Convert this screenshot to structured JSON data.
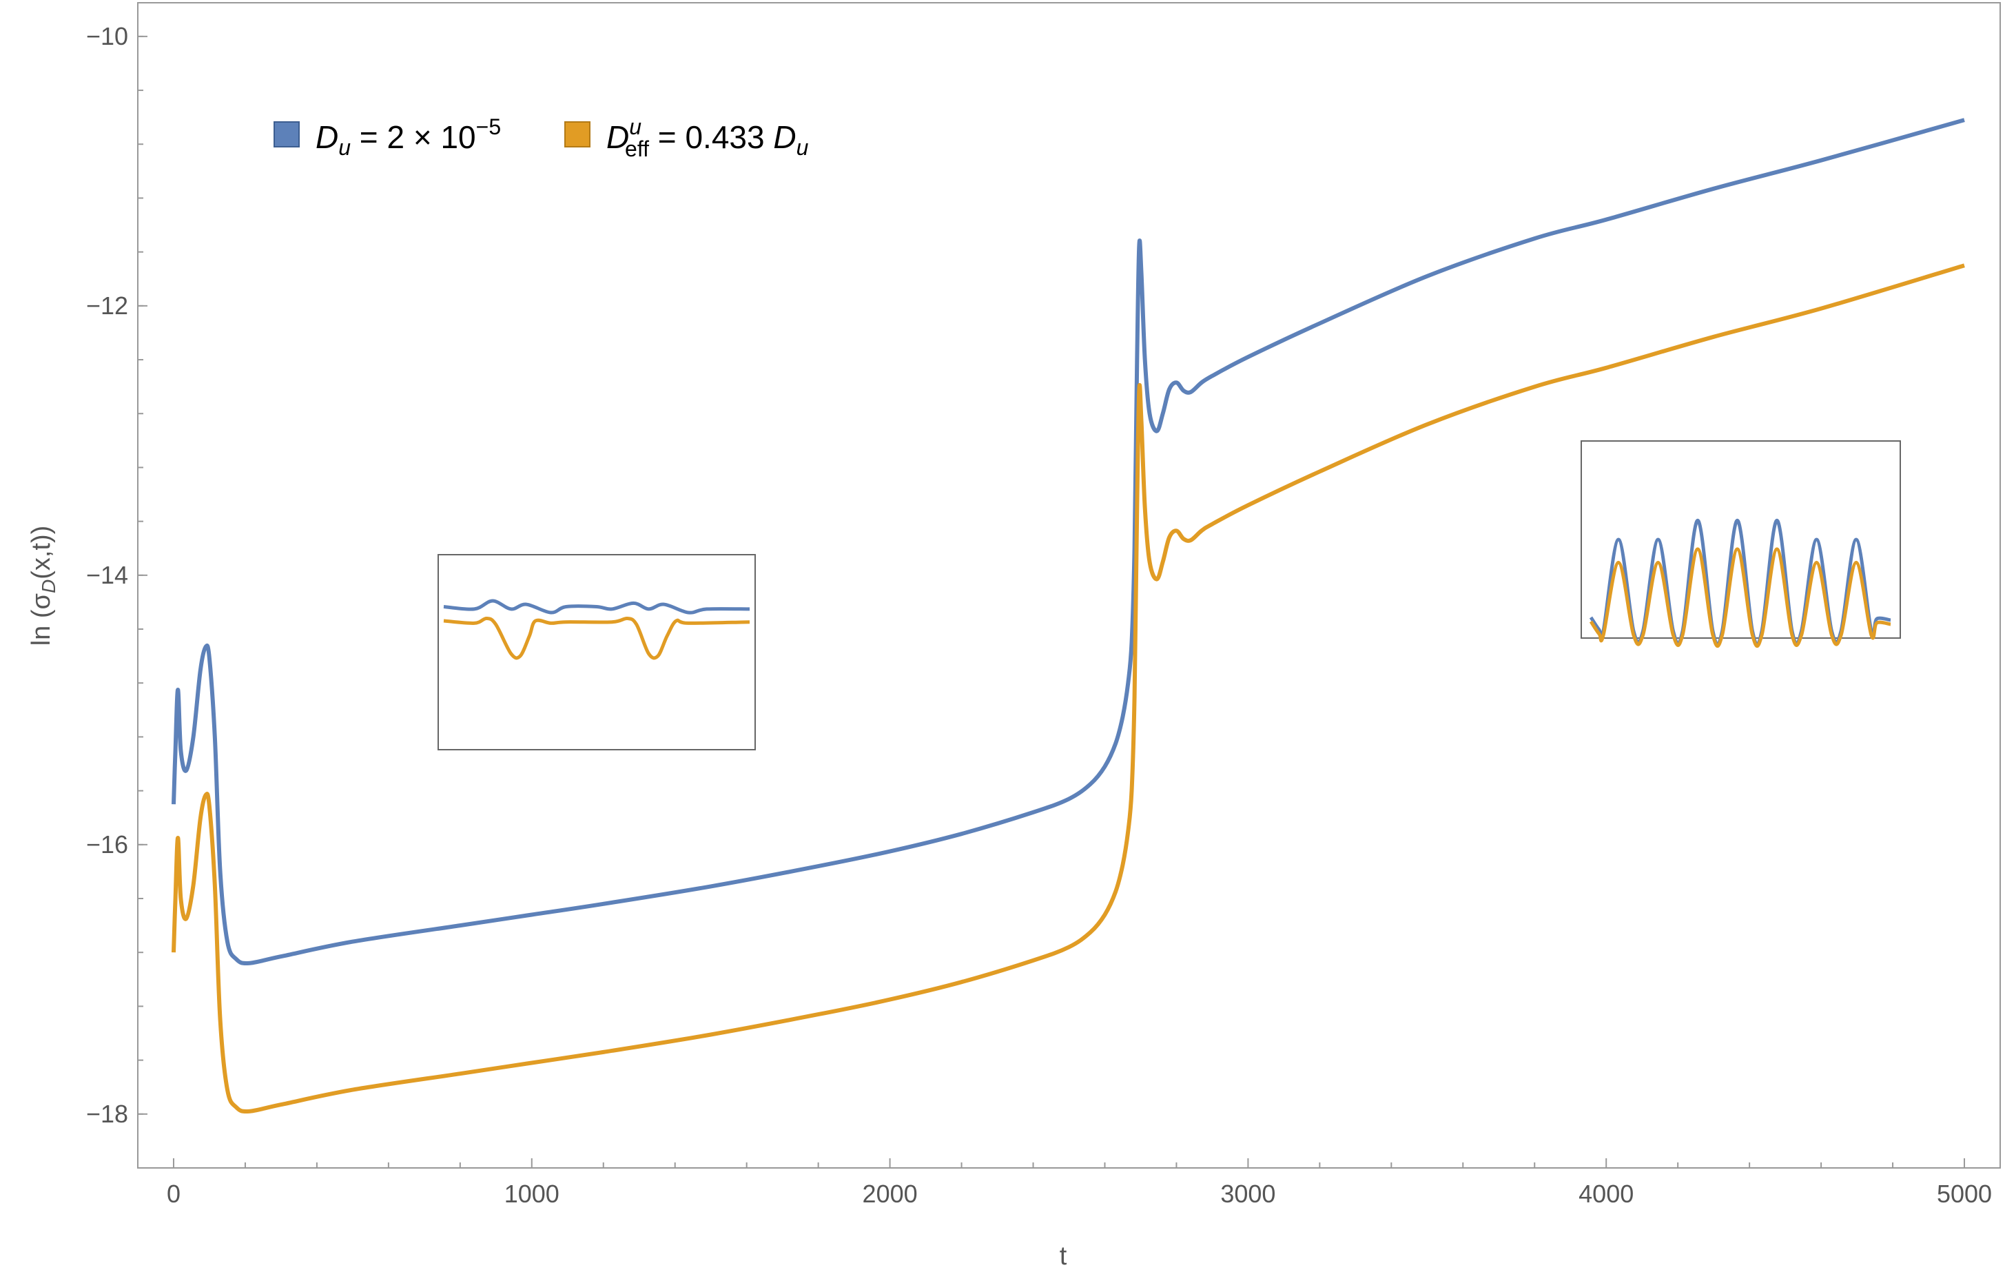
{
  "chart_data": {
    "type": "line",
    "xlabel": "t",
    "ylabel": "ln (σ_D(x,t))",
    "ylabel_parts": {
      "pre": "ln (σ",
      "sub": "D",
      "post": "(x,t))"
    },
    "xlim": [
      -100,
      5100
    ],
    "ylim": [
      -18.4,
      -9.75
    ],
    "x_ticks": [
      0,
      1000,
      2000,
      3000,
      4000,
      5000
    ],
    "x_tick_labels": [
      "0",
      "1000",
      "2000",
      "3000",
      "4000",
      "5000"
    ],
    "y_ticks": [
      -10,
      -12,
      -14,
      -16,
      -18
    ],
    "y_tick_labels": [
      "−10",
      "−12",
      "−14",
      "−16",
      "−18"
    ],
    "legend_placement": "top-left",
    "legend": [
      {
        "main": "D",
        "sub": "u",
        "sup": "",
        "rest": " = 2 × 10",
        "restsup": "−5",
        "color": "#5d81b9"
      },
      {
        "main": "D",
        "sub": "eff",
        "sup": "u",
        "rest": " = 0.433 ",
        "restsup": "",
        "tail_main": "D",
        "tail_sub": "u",
        "color": "#e19c24"
      }
    ],
    "series": [
      {
        "name": "D_u = 2 × 10^−5",
        "color": "#5d81b9",
        "points": [
          [
            0,
            -15.7
          ],
          [
            5,
            -15.3
          ],
          [
            12,
            -14.85
          ],
          [
            20,
            -15.3
          ],
          [
            35,
            -15.45
          ],
          [
            55,
            -15.2
          ],
          [
            75,
            -14.7
          ],
          [
            90,
            -14.53
          ],
          [
            100,
            -14.62
          ],
          [
            115,
            -15.2
          ],
          [
            130,
            -16.2
          ],
          [
            150,
            -16.72
          ],
          [
            175,
            -16.85
          ],
          [
            210,
            -16.88
          ],
          [
            300,
            -16.83
          ],
          [
            500,
            -16.72
          ],
          [
            800,
            -16.6
          ],
          [
            1000,
            -16.52
          ],
          [
            1200,
            -16.44
          ],
          [
            1500,
            -16.31
          ],
          [
            1800,
            -16.16
          ],
          [
            2000,
            -16.05
          ],
          [
            2200,
            -15.92
          ],
          [
            2400,
            -15.76
          ],
          [
            2500,
            -15.66
          ],
          [
            2560,
            -15.55
          ],
          [
            2600,
            -15.42
          ],
          [
            2630,
            -15.25
          ],
          [
            2650,
            -15.05
          ],
          [
            2665,
            -14.8
          ],
          [
            2675,
            -14.5
          ],
          [
            2683,
            -13.8
          ],
          [
            2690,
            -12.4
          ],
          [
            2696,
            -11.55
          ],
          [
            2702,
            -11.75
          ],
          [
            2712,
            -12.4
          ],
          [
            2725,
            -12.8
          ],
          [
            2745,
            -12.93
          ],
          [
            2762,
            -12.8
          ],
          [
            2780,
            -12.62
          ],
          [
            2800,
            -12.57
          ],
          [
            2820,
            -12.63
          ],
          [
            2840,
            -12.64
          ],
          [
            2870,
            -12.57
          ],
          [
            2900,
            -12.52
          ],
          [
            3000,
            -12.38
          ],
          [
            3200,
            -12.13
          ],
          [
            3500,
            -11.78
          ],
          [
            3800,
            -11.5
          ],
          [
            4000,
            -11.36
          ],
          [
            4300,
            -11.13
          ],
          [
            4600,
            -10.92
          ],
          [
            5000,
            -10.62
          ]
        ]
      },
      {
        "name": "D^u_eff = 0.433 D_u",
        "color": "#e19c24",
        "points": [
          [
            0,
            -16.8
          ],
          [
            5,
            -16.4
          ],
          [
            12,
            -15.95
          ],
          [
            20,
            -16.4
          ],
          [
            35,
            -16.55
          ],
          [
            55,
            -16.3
          ],
          [
            75,
            -15.8
          ],
          [
            90,
            -15.63
          ],
          [
            100,
            -15.72
          ],
          [
            115,
            -16.3
          ],
          [
            130,
            -17.3
          ],
          [
            150,
            -17.82
          ],
          [
            175,
            -17.95
          ],
          [
            210,
            -17.98
          ],
          [
            300,
            -17.93
          ],
          [
            500,
            -17.82
          ],
          [
            800,
            -17.7
          ],
          [
            1000,
            -17.62
          ],
          [
            1200,
            -17.54
          ],
          [
            1500,
            -17.41
          ],
          [
            1800,
            -17.26
          ],
          [
            2000,
            -17.15
          ],
          [
            2200,
            -17.02
          ],
          [
            2400,
            -16.86
          ],
          [
            2500,
            -16.76
          ],
          [
            2560,
            -16.65
          ],
          [
            2600,
            -16.52
          ],
          [
            2630,
            -16.35
          ],
          [
            2650,
            -16.15
          ],
          [
            2665,
            -15.9
          ],
          [
            2675,
            -15.6
          ],
          [
            2683,
            -14.9
          ],
          [
            2690,
            -13.5
          ],
          [
            2696,
            -12.62
          ],
          [
            2702,
            -12.85
          ],
          [
            2712,
            -13.5
          ],
          [
            2725,
            -13.9
          ],
          [
            2745,
            -14.03
          ],
          [
            2762,
            -13.9
          ],
          [
            2780,
            -13.72
          ],
          [
            2800,
            -13.67
          ],
          [
            2820,
            -13.73
          ],
          [
            2840,
            -13.74
          ],
          [
            2870,
            -13.67
          ],
          [
            2900,
            -13.62
          ],
          [
            3000,
            -13.48
          ],
          [
            3200,
            -13.23
          ],
          [
            3500,
            -12.88
          ],
          [
            3800,
            -12.6
          ],
          [
            4000,
            -12.46
          ],
          [
            4300,
            -12.23
          ],
          [
            4600,
            -12.02
          ],
          [
            5000,
            -11.7
          ]
        ]
      }
    ],
    "insets": [
      {
        "placement": "middle-left",
        "description_pattern": "flat",
        "t_range": [
          0,
          100
        ],
        "blue": [
          [
            0,
            0.5
          ],
          [
            10,
            0.52
          ],
          [
            16,
            0.45
          ],
          [
            22,
            0.52
          ],
          [
            27,
            0.48
          ],
          [
            35,
            0.55
          ],
          [
            40,
            0.5
          ],
          [
            50,
            0.5
          ],
          [
            55,
            0.52
          ],
          [
            62,
            0.47
          ],
          [
            67,
            0.52
          ],
          [
            72,
            0.48
          ],
          [
            80,
            0.55
          ],
          [
            86,
            0.52
          ],
          [
            100,
            0.52
          ]
        ],
        "orange": [
          [
            0,
            0.62
          ],
          [
            10,
            0.64
          ],
          [
            14,
            0.6
          ],
          [
            17,
            0.65
          ],
          [
            22,
            0.9
          ],
          [
            25,
            0.92
          ],
          [
            28,
            0.75
          ],
          [
            30,
            0.62
          ],
          [
            35,
            0.64
          ],
          [
            40,
            0.63
          ],
          [
            55,
            0.63
          ],
          [
            60,
            0.6
          ],
          [
            63,
            0.65
          ],
          [
            67,
            0.9
          ],
          [
            70,
            0.92
          ],
          [
            73,
            0.75
          ],
          [
            76,
            0.62
          ],
          [
            80,
            0.64
          ],
          [
            100,
            0.63
          ]
        ]
      },
      {
        "placement": "middle-right",
        "peaks_blue": [
          0.5,
          0.5,
          0.4,
          0.4,
          0.4,
          0.5,
          0.5
        ],
        "peaks_orange": [
          0.62,
          0.62,
          0.55,
          0.55,
          0.55,
          0.62,
          0.62
        ],
        "t_range": [
          0,
          100
        ]
      }
    ]
  }
}
